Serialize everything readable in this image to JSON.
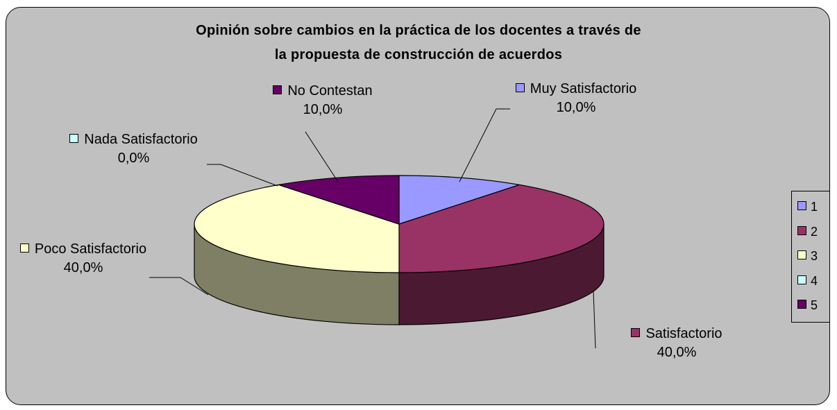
{
  "chart_data": {
    "type": "pie",
    "title": [
      "Opinión sobre cambios en la práctica de los docentes a través de",
      "la propuesta de construcción de acuerdos"
    ],
    "categories": [
      "Muy Satisfactorio",
      "Satisfactorio",
      "Poco Satisfactorio",
      "Nada Satisfactorio",
      "No Contestan"
    ],
    "values": [
      10,
      40,
      40,
      0,
      10
    ],
    "value_labels": [
      "10,0%",
      "40,0%",
      "40,0%",
      "0,0%",
      "10,0%"
    ],
    "colors": [
      "#9999ff",
      "#993366",
      "#ffffcc",
      "#ccffff",
      "#660066"
    ],
    "legend": [
      "1",
      "2",
      "3",
      "4",
      "5"
    ]
  }
}
